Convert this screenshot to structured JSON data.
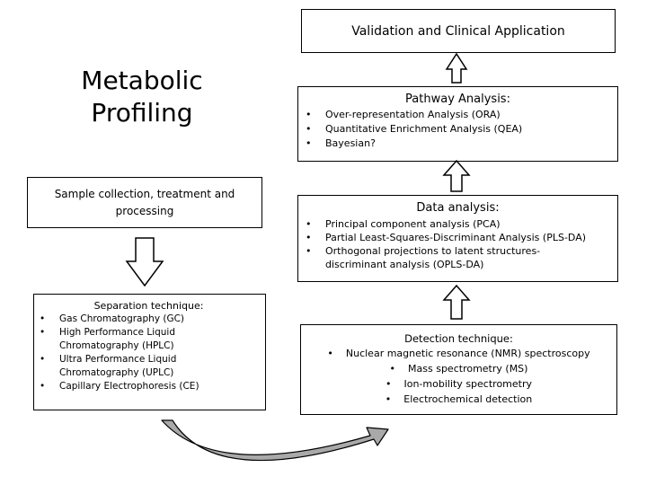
{
  "headline": {
    "line1": "Metabolic",
    "line2": "Profiling"
  },
  "validation": {
    "title": "Validation and Clinical Application"
  },
  "pathway": {
    "title": "Pathway Analysis:",
    "items": [
      "Over-representation Analysis (ORA)",
      "Quantitative Enrichment Analysis (QEA)",
      "Bayesian?"
    ]
  },
  "data_analysis": {
    "title": "Data analysis:",
    "items": [
      "Principal component analysis (PCA)",
      "Partial Least-Squares-Discriminant Analysis (PLS-DA)",
      "Orthogonal projections to latent structures-discriminant analysis (OPLS-DA)"
    ]
  },
  "sample": {
    "title": "Sample collection, treatment and processing"
  },
  "separation": {
    "title": "Separation technique:",
    "items": [
      "Gas Chromatography (GC)",
      "High Performance Liquid Chromatography (HPLC)",
      "Ultra Performance Liquid Chromatography (UPLC)",
      "Capillary Electrophoresis (CE)"
    ]
  },
  "detection": {
    "title": "Detection technique:",
    "items": [
      "Nuclear magnetic resonance (NMR) spectroscopy",
      "Mass spectrometry (MS)",
      "Ion-mobility spectrometry",
      "Electrochemical detection"
    ]
  },
  "colors": {
    "curved_arrow_fill": "#a9a9a9",
    "stroke": "#000000"
  }
}
